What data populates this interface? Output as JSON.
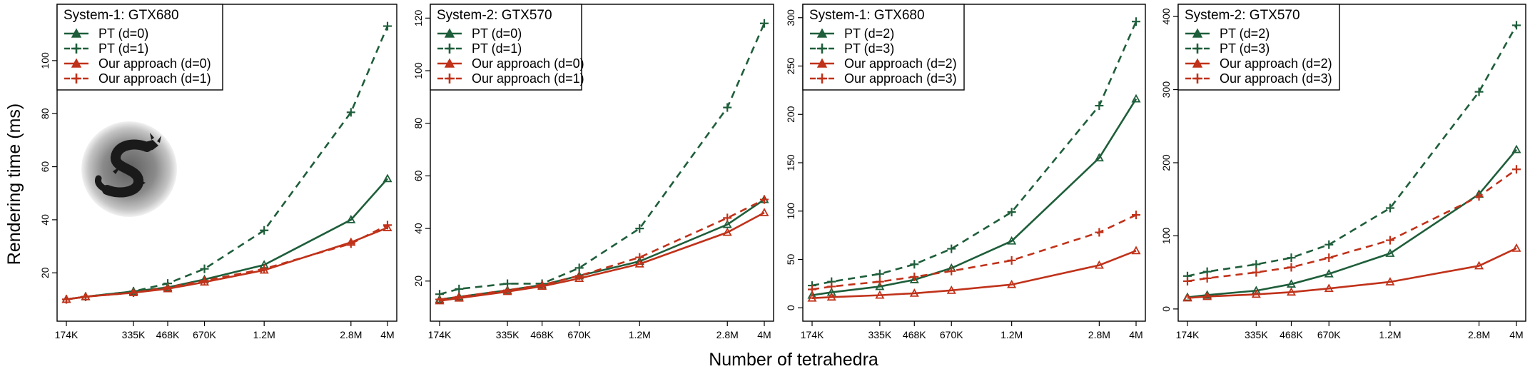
{
  "figure": {
    "xlabel": "Number of tetrahedra",
    "ylabel": "Rendering time (ms)",
    "colors": {
      "pt": "#1e5e3a",
      "ours": "#c0321a"
    },
    "inset_image": "dragon-sphere-render"
  },
  "chart_data": [
    {
      "type": "line",
      "title": "System-1: GTX680",
      "x": [
        174,
        210,
        335,
        468,
        670,
        1200,
        2800,
        4000
      ],
      "x_scale": "log",
      "x_ticks": [
        174,
        335,
        468,
        670,
        1200,
        2800,
        4000
      ],
      "x_tick_labels": [
        "174K",
        "335K",
        "468K",
        "670K",
        "1.2M",
        "2.8M",
        "4M"
      ],
      "y_ticks": [
        20,
        40,
        60,
        80,
        100
      ],
      "ylim": [
        5,
        118
      ],
      "legend_position": "top-left",
      "series": [
        {
          "name": "PT (d=0)",
          "color": "#1e5e3a",
          "dash": false,
          "marker": "triangle",
          "values": [
            10,
            11,
            13,
            14.5,
            17.5,
            23,
            40,
            55.5
          ]
        },
        {
          "name": "PT (d=1)",
          "color": "#1e5e3a",
          "dash": true,
          "marker": "plus",
          "values": [
            10,
            11,
            13,
            16,
            21.5,
            36,
            80.5,
            113
          ]
        },
        {
          "name": "Our approach (d=0)",
          "color": "#c0321a",
          "dash": false,
          "marker": "triangle",
          "values": [
            10,
            11,
            12.5,
            14,
            16.5,
            21,
            31.5,
            37
          ]
        },
        {
          "name": "Our approach (d=1)",
          "color": "#c0321a",
          "dash": true,
          "marker": "plus",
          "values": [
            10,
            11,
            12.5,
            14.5,
            17,
            21.5,
            31,
            38
          ]
        }
      ]
    },
    {
      "type": "line",
      "title": "System-2: GTX570",
      "x": [
        174,
        210,
        335,
        468,
        670,
        1200,
        2800,
        4000
      ],
      "x_scale": "log",
      "x_ticks": [
        174,
        335,
        468,
        670,
        1200,
        2800,
        4000
      ],
      "x_tick_labels": [
        "174K",
        "335K",
        "468K",
        "670K",
        "1.2M",
        "2.8M",
        "4M"
      ],
      "y_ticks": [
        20,
        40,
        60,
        80,
        100,
        120
      ],
      "ylim": [
        8,
        122
      ],
      "legend_position": "top-left",
      "series": [
        {
          "name": "PT (d=0)",
          "color": "#1e5e3a",
          "dash": false,
          "marker": "triangle",
          "values": [
            13,
            14,
            16.5,
            18.5,
            22,
            27.5,
            41.5,
            51
          ]
        },
        {
          "name": "PT (d=1)",
          "color": "#1e5e3a",
          "dash": true,
          "marker": "plus",
          "values": [
            15,
            17,
            19,
            19,
            25,
            40,
            86,
            118
          ]
        },
        {
          "name": "Our approach (d=0)",
          "color": "#c0321a",
          "dash": false,
          "marker": "triangle",
          "values": [
            12.5,
            13.5,
            16,
            18,
            21,
            26.5,
            38.5,
            46
          ]
        },
        {
          "name": "Our approach (d=1)",
          "color": "#c0321a",
          "dash": true,
          "marker": "plus",
          "values": [
            13,
            14,
            16.5,
            18.5,
            22,
            29,
            44,
            51
          ]
        }
      ]
    },
    {
      "type": "line",
      "title": "System-1: GTX680",
      "x": [
        174,
        210,
        335,
        468,
        670,
        1200,
        2800,
        4000
      ],
      "x_scale": "log",
      "x_ticks": [
        174,
        335,
        468,
        670,
        1200,
        2800,
        4000
      ],
      "x_tick_labels": [
        "174K",
        "335K",
        "468K",
        "670K",
        "1.2M",
        "2.8M",
        "4M"
      ],
      "y_ticks": [
        0,
        50,
        100,
        150,
        200,
        250,
        300
      ],
      "ylim": [
        -5,
        305
      ],
      "legend_position": "top-left",
      "series": [
        {
          "name": "PT (d=2)",
          "color": "#1e5e3a",
          "dash": false,
          "marker": "triangle",
          "values": [
            13,
            16,
            22,
            29,
            41,
            69,
            155,
            216
          ]
        },
        {
          "name": "PT (d=3)",
          "color": "#1e5e3a",
          "dash": true,
          "marker": "plus",
          "values": [
            23,
            27,
            35,
            45,
            61,
            99,
            209,
            296
          ]
        },
        {
          "name": "Our approach (d=2)",
          "color": "#c0321a",
          "dash": false,
          "marker": "triangle",
          "values": [
            10,
            11,
            13,
            15,
            18,
            24,
            44,
            59
          ]
        },
        {
          "name": "Our approach (d=3)",
          "color": "#c0321a",
          "dash": true,
          "marker": "plus",
          "values": [
            19,
            22,
            27,
            32,
            38,
            49,
            78,
            96
          ]
        }
      ]
    },
    {
      "type": "line",
      "title": "System-2: GTX570",
      "x": [
        174,
        210,
        335,
        468,
        670,
        1200,
        2800,
        4000
      ],
      "x_scale": "log",
      "x_ticks": [
        174,
        335,
        468,
        670,
        1200,
        2800,
        4000
      ],
      "x_tick_labels": [
        "174K",
        "335K",
        "468K",
        "670K",
        "1.2M",
        "2.8M",
        "4M"
      ],
      "y_ticks": [
        0,
        100,
        200,
        300,
        400
      ],
      "ylim": [
        -5,
        405
      ],
      "legend_position": "top-left",
      "series": [
        {
          "name": "PT (d=2)",
          "color": "#1e5e3a",
          "dash": false,
          "marker": "triangle",
          "values": [
            16,
            19,
            25,
            34,
            48,
            76,
            157,
            218
          ]
        },
        {
          "name": "PT (d=3)",
          "color": "#1e5e3a",
          "dash": true,
          "marker": "plus",
          "values": [
            45,
            51,
            61,
            70,
            88,
            138,
            297,
            388
          ]
        },
        {
          "name": "Our approach (d=2)",
          "color": "#c0321a",
          "dash": false,
          "marker": "triangle",
          "values": [
            15,
            17,
            20,
            23,
            28,
            37,
            59,
            83
          ]
        },
        {
          "name": "Our approach (d=3)",
          "color": "#c0321a",
          "dash": true,
          "marker": "plus",
          "values": [
            38,
            42,
            50,
            57,
            70,
            94,
            154,
            191
          ]
        }
      ]
    }
  ]
}
